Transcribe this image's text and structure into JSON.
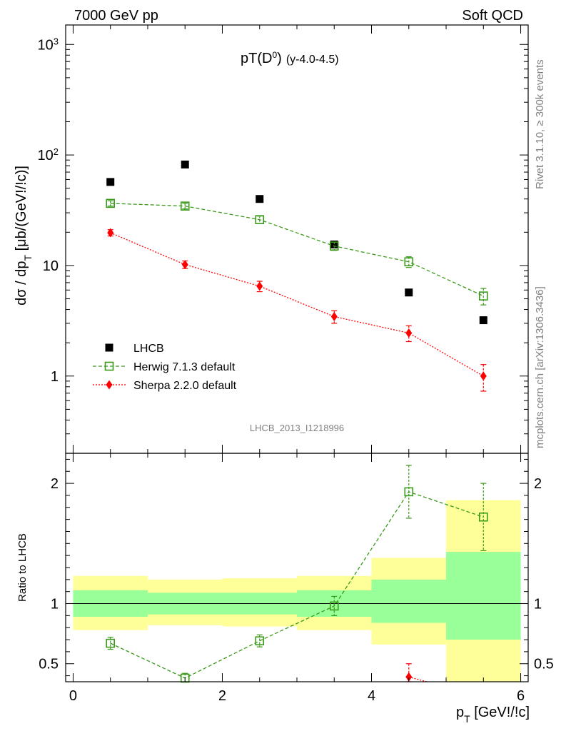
{
  "header": {
    "left": "7000 GeV pp",
    "right": "Soft QCD"
  },
  "side_labels": {
    "rivet": "Rivet 3.1.10, ≥ 300k events",
    "mcplots": "mcplots.cern.ch [arXiv:1306.3436]"
  },
  "chart_data": [
    {
      "type": "scatter",
      "title": "pT(D0) (y-4.0-4.5)",
      "title_main": "pT(D",
      "title_sup": "0",
      "title_close": ")",
      "title_sub": "(y-4.0-4.5)",
      "ylabel": "dσ / dp_T [μb/(GeV\\!/\\!c)]",
      "ylabel_main": "dσ / dp",
      "ylabel_sub": "T",
      "ylabel_rest": " [μb/(GeV!/!c)]",
      "yscale": "log",
      "ylim": [
        0.2,
        1500
      ],
      "xlim": [
        -0.1,
        6.1
      ],
      "ytick_labels": [
        "1",
        "10",
        "10",
        "10"
      ],
      "ytick_sups": [
        "",
        "",
        "2",
        "3"
      ],
      "watermark": "LHCB_2013_I1218996",
      "legend_placement": "lower-left",
      "series": [
        {
          "name": "LHCB",
          "color": "#000000",
          "marker": "square",
          "x": [
            0.5,
            1.5,
            2.5,
            3.5,
            4.5,
            5.5
          ],
          "y": [
            57,
            82,
            40,
            15.5,
            5.7,
            3.2
          ]
        },
        {
          "name": "Herwig 7.1.3 default",
          "color": "#3a9a1a",
          "marker": "open-square",
          "line": "dashed",
          "x": [
            0.5,
            1.5,
            2.5,
            3.5,
            4.5,
            5.5
          ],
          "y": [
            36.5,
            34.5,
            26,
            15,
            10.8,
            5.3
          ],
          "err_low": [
            2.0,
            2.0,
            2.0,
            1.3,
            1.2,
            0.9
          ],
          "err_high": [
            2.0,
            2.0,
            2.0,
            1.3,
            1.2,
            0.9
          ]
        },
        {
          "name": "Sherpa 2.2.0 default",
          "color": "#ff0000",
          "marker": "diamond",
          "line": "dotted",
          "x": [
            0.5,
            1.5,
            2.5,
            3.5,
            4.5,
            5.5
          ],
          "y": [
            19.8,
            10.2,
            6.5,
            3.45,
            2.45,
            1.0
          ],
          "err_low": [
            1.3,
            0.8,
            0.7,
            0.45,
            0.4,
            0.27
          ],
          "err_high": [
            1.3,
            0.8,
            0.7,
            0.45,
            0.4,
            0.27
          ]
        }
      ]
    },
    {
      "type": "scatter",
      "ylabel": "Ratio to LHCB",
      "xlabel": "p_T [GeV\\!/\\!c]",
      "xlabel_main": "p",
      "xlabel_sub": "T",
      "xlabel_rest": " [GeV!/!c]",
      "xlim": [
        -0.1,
        6.1
      ],
      "ylim": [
        0.35,
        2.25
      ],
      "xticks": [
        0,
        2,
        4,
        6
      ],
      "yticks": [
        0.5,
        1,
        2
      ],
      "ytick_labels": [
        "0.5",
        "1",
        "2"
      ],
      "bands": {
        "x_edges": [
          0,
          1,
          2,
          3,
          4,
          5,
          6
        ],
        "inner_color": "#99ff99",
        "outer_color": "#ffff99",
        "inner_low": [
          0.89,
          0.91,
          0.91,
          0.89,
          0.84,
          0.7
        ],
        "inner_high": [
          1.11,
          1.09,
          1.09,
          1.11,
          1.2,
          1.43
        ],
        "outer_low": [
          0.78,
          0.82,
          0.81,
          0.78,
          0.66,
          0.3
        ],
        "outer_high": [
          1.23,
          1.2,
          1.21,
          1.23,
          1.38,
          1.86
        ]
      },
      "series": [
        {
          "name": "Herwig 7.1.3 default",
          "color": "#3a9a1a",
          "marker": "open-square",
          "line": "dashed",
          "x": [
            0.5,
            1.5,
            2.5,
            3.5,
            4.5,
            5.5
          ],
          "y": [
            0.67,
            0.38,
            0.69,
            0.98,
            1.93,
            1.72
          ],
          "err_low": [
            0.05,
            0.04,
            0.05,
            0.08,
            0.22,
            0.28
          ],
          "err_high": [
            0.05,
            0.04,
            0.05,
            0.08,
            0.22,
            0.28
          ]
        },
        {
          "name": "Sherpa 2.2.0 default",
          "color": "#ff0000",
          "marker": "diamond",
          "line": "dotted",
          "x": [
            4.5,
            4.8
          ],
          "y": [
            0.39,
            0.34
          ],
          "err_low": [
            0.05,
            0
          ],
          "err_high": [
            0.11,
            0
          ]
        }
      ]
    }
  ]
}
